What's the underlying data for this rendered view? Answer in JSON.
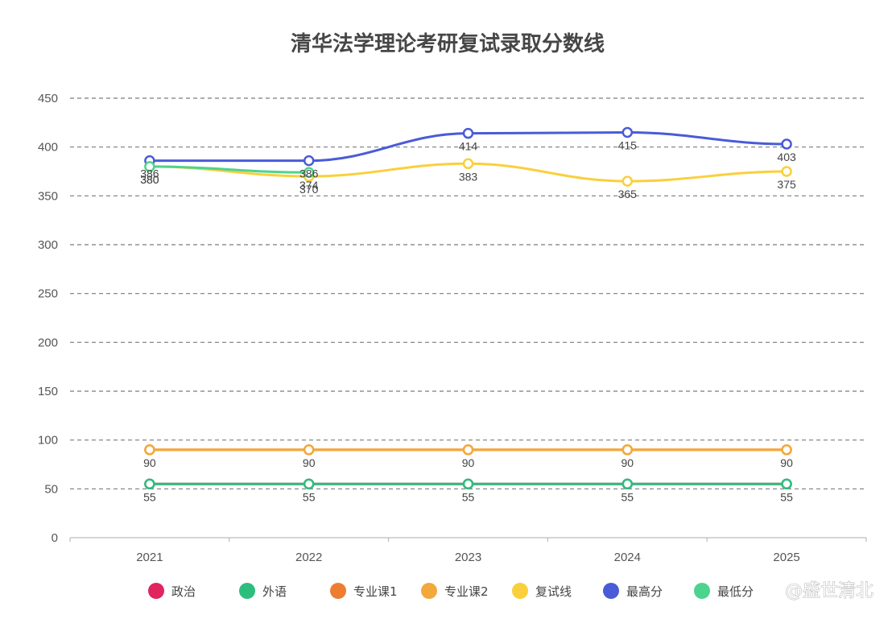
{
  "chart_data": {
    "type": "line",
    "title": "清华法学理论考研复试录取分数线",
    "categories": [
      "2021",
      "2022",
      "2023",
      "2024",
      "2025"
    ],
    "ylim": [
      0,
      450
    ],
    "yticks": [
      0,
      50,
      100,
      150,
      200,
      250,
      300,
      350,
      400,
      450
    ],
    "grid": true,
    "legend_position": "bottom",
    "series": [
      {
        "name": "政治",
        "color": "#E0245E",
        "values": [
          55,
          55,
          55,
          55,
          55
        ],
        "labels_visible": false
      },
      {
        "name": "外语",
        "color": "#2DBE7E",
        "values": [
          55,
          55,
          55,
          55,
          55
        ],
        "labels_visible": true
      },
      {
        "name": "专业课1",
        "color": "#ED7D31",
        "values": [
          90,
          90,
          90,
          90,
          90
        ],
        "labels_visible": false
      },
      {
        "name": "专业课2",
        "color": "#F2A93B",
        "values": [
          90,
          90,
          90,
          90,
          90
        ],
        "labels_visible": true
      },
      {
        "name": "复试线",
        "color": "#F9D03C",
        "values": [
          380,
          370,
          383,
          365,
          375
        ],
        "labels_visible": true
      },
      {
        "name": "最高分",
        "color": "#4A5BD8",
        "values": [
          386,
          386,
          414,
          415,
          403
        ],
        "labels_visible": true
      },
      {
        "name": "最低分",
        "color": "#4CD48E",
        "values": [
          380,
          374,
          null,
          null,
          null
        ],
        "labels_visible": true
      }
    ]
  },
  "watermark": "@盛世清北"
}
